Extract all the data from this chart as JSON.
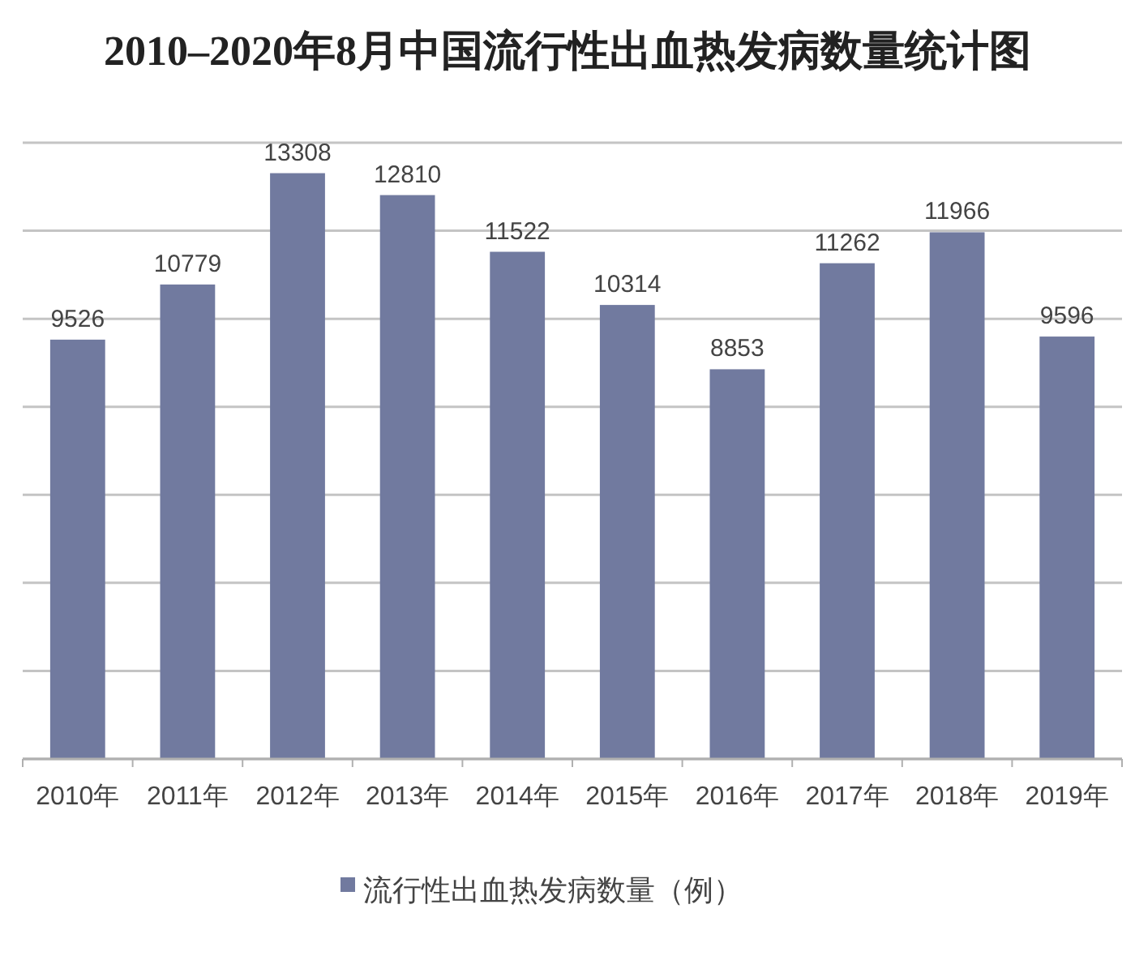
{
  "chart_data": {
    "type": "bar",
    "title": "2010–2020年8月中国流行性出血热发病数量统计图",
    "categories": [
      "2010年",
      "2011年",
      "2012年",
      "2013年",
      "2014年",
      "2015年",
      "2016年",
      "2017年",
      "2018年",
      "2019年"
    ],
    "series": [
      {
        "name": "流行性出血热发病数量（例）",
        "color": "#717a9f",
        "values": [
          9526,
          10779,
          13308,
          12810,
          11522,
          10314,
          8853,
          11262,
          11966,
          9596
        ]
      }
    ],
    "ylim": [
      0,
      14000
    ],
    "yticks": [
      {
        "value": 0,
        "label": null
      },
      {
        "value": 2000,
        "label": null
      },
      {
        "value": 4000,
        "label": null
      },
      {
        "value": 6000,
        "label": null
      },
      {
        "value": 8000,
        "label": null
      },
      {
        "value": 10000,
        "label": null
      },
      {
        "value": 12000,
        "label": null
      },
      {
        "value": 14000,
        "label": null
      }
    ],
    "tick_labels": "x",
    "grid": "y",
    "data_labels": true,
    "legend": "bottom"
  }
}
